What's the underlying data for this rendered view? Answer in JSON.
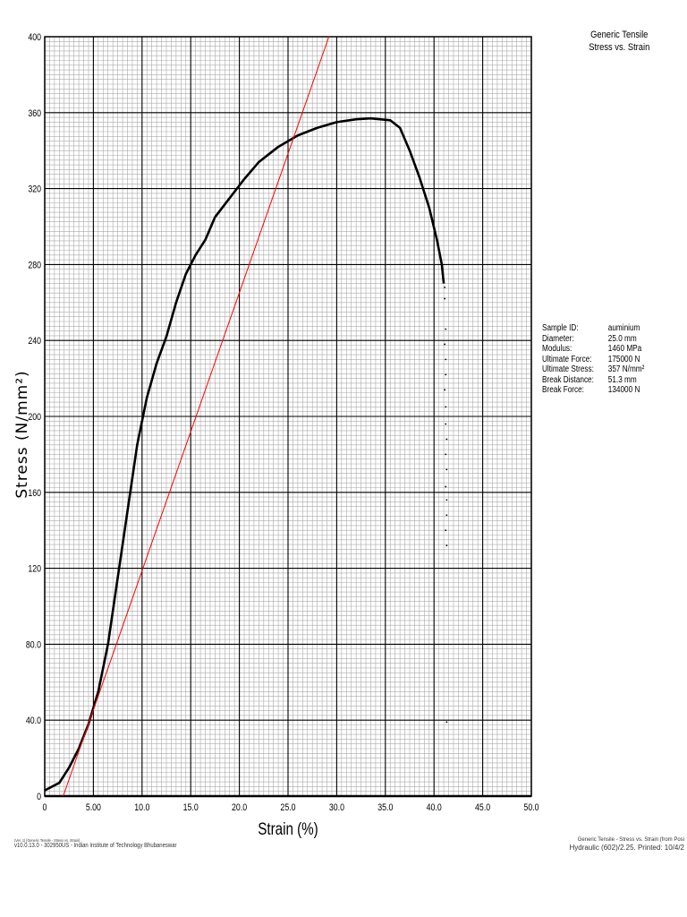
{
  "chart_data": {
    "type": "line",
    "title": "Generic Tensile",
    "subtitle": "Stress vs. Strain",
    "xlabel": "Strain (%)",
    "ylabel": "Stress (N/mm²)",
    "xlim": [
      0,
      50
    ],
    "ylim": [
      0,
      400
    ],
    "x_ticks": [
      "0",
      "5.00",
      "10.0",
      "15.0",
      "20.0",
      "25.0",
      "30.0",
      "35.0",
      "40.0",
      "45.0",
      "50.0"
    ],
    "y_ticks": [
      "0",
      "40.0",
      "80.0",
      "120",
      "160",
      "200",
      "240",
      "280",
      "320",
      "360",
      "400"
    ],
    "grid": true,
    "series": [
      {
        "color": "#000000",
        "x": [
          0,
          1.5,
          2.5,
          3.5,
          4.5,
          5.5,
          6.5,
          7.5,
          8.5,
          9.5,
          10.5,
          11.5,
          12.5,
          13.5,
          14.5,
          15.5,
          16.5,
          17.5,
          19,
          20.5,
          22,
          24,
          26,
          28,
          30,
          32,
          33.5,
          35.5,
          36.5,
          37.5,
          38.5,
          39.5,
          40.3,
          40.8,
          41
        ],
        "y": [
          3,
          7,
          15,
          25,
          38,
          55,
          80,
          115,
          150,
          185,
          210,
          228,
          242,
          260,
          275,
          285,
          293,
          305,
          315,
          325,
          334,
          342,
          348,
          352,
          355,
          356.5,
          357,
          356,
          352,
          340,
          326,
          310,
          293,
          280,
          270
        ]
      },
      {
        "color": "#ff0000",
        "x": [
          1.9,
          29.2
        ],
        "y": [
          0,
          400
        ]
      },
      {
        "color": "#000000",
        "style": "dots",
        "x": [
          41.1,
          41.1,
          41.2,
          41.1,
          41.2,
          41.2,
          41.1,
          41.2,
          41.2,
          41.3,
          41.2,
          41.3,
          41.2,
          41.3,
          41.3,
          41.2,
          41.3,
          41.3
        ],
        "y": [
          268,
          262,
          246,
          238,
          230,
          222,
          214,
          205,
          196,
          188,
          180,
          172,
          163,
          156,
          148,
          140,
          132,
          39
        ]
      }
    ]
  },
  "info": [
    {
      "k": "Sample ID:",
      "v": "auminium"
    },
    {
      "k": "Diameter:",
      "v": "25.0 mm"
    },
    {
      "k": "Modulus:",
      "v": "1460 MPa"
    },
    {
      "k": "Ultimate Force:",
      "v": "175000 N"
    },
    {
      "k": "Ultimate Stress:",
      "v": "357 N/mm²"
    },
    {
      "k": "Break Distance:",
      "v": "51.3 mm"
    },
    {
      "k": "Break Force:",
      "v": "134000 N"
    }
  ],
  "footer": {
    "left_small": "(Ver. 1) [Generic Tensile - Stress vs. Strain]",
    "left": "v10.0.13.0 - 302950US - Indian Institute of Technology Bhubaneswar",
    "right_small": "Generic Tensile - Stress vs. Strain (from Posi",
    "right": "Hydraulic (602)/2.25. Printed: 10/4/2"
  }
}
